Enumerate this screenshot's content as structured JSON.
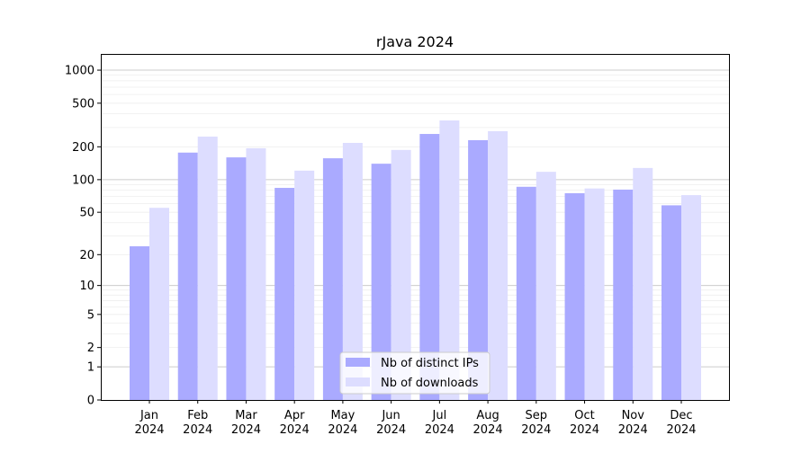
{
  "chart_data": {
    "type": "bar",
    "title": "rJava 2024",
    "xlabel": "",
    "ylabel": "",
    "yscale": "symlog",
    "ylim": [
      0,
      1300
    ],
    "yticks": [
      0,
      1,
      2,
      5,
      10,
      20,
      50,
      100,
      200,
      500,
      1000
    ],
    "grid": true,
    "legend_position": "bottom-center",
    "categories": [
      "Jan\n2024",
      "Feb\n2024",
      "Mar\n2024",
      "Apr\n2024",
      "May\n2024",
      "Jun\n2024",
      "Jul\n2024",
      "Aug\n2024",
      "Sep\n2024",
      "Oct\n2024",
      "Nov\n2024",
      "Dec\n2024"
    ],
    "series": [
      {
        "name": "Nb of distinct IPs",
        "color": "#aaaaff",
        "values": [
          24,
          177,
          160,
          84,
          157,
          140,
          262,
          230,
          86,
          75,
          81,
          58
        ]
      },
      {
        "name": "Nb of downloads",
        "color": "#ddddff",
        "values": [
          55,
          248,
          194,
          121,
          217,
          187,
          348,
          278,
          118,
          83,
          128,
          72
        ]
      }
    ]
  }
}
